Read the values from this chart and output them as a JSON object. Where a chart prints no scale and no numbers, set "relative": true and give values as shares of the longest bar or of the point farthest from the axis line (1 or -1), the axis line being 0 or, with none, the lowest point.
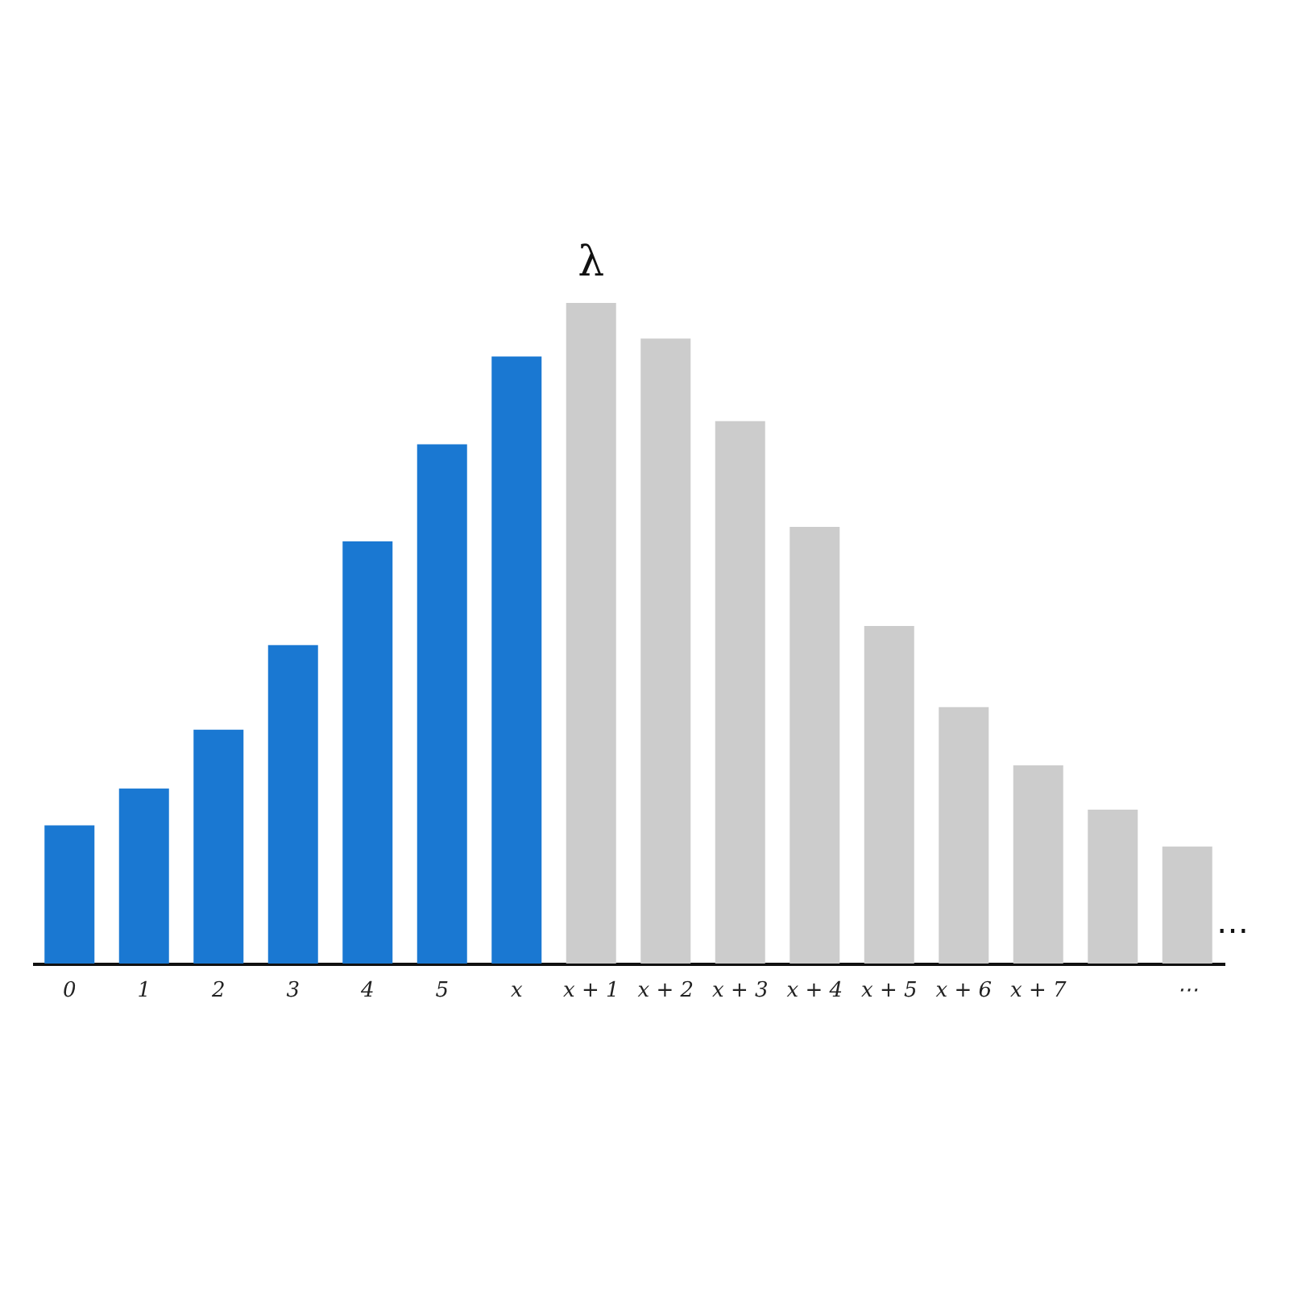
{
  "chart_data": {
    "type": "bar",
    "relative": true,
    "categories": [
      "0",
      "1",
      "2",
      "3",
      "4",
      "5",
      "x",
      "x + 1",
      "x + 2",
      "x + 3",
      "x + 4",
      "x + 5",
      "x + 6",
      "x + 7",
      null,
      "⋯"
    ],
    "values": [
      0.209,
      0.265,
      0.354,
      0.482,
      0.639,
      0.786,
      0.919,
      1,
      0.946,
      0.821,
      0.661,
      0.511,
      0.388,
      0.3,
      0.233,
      0.177
    ],
    "colors": [
      "#1a78d2",
      "#1a78d2",
      "#1a78d2",
      "#1a78d2",
      "#1a78d2",
      "#1a78d2",
      "#1a78d2",
      "#cccccc",
      "#cccccc",
      "#cccccc",
      "#cccccc",
      "#cccccc",
      "#cccccc",
      "#cccccc",
      "#cccccc",
      "#cccccc"
    ],
    "annotations": [
      {
        "text": "λ",
        "x": "x + 1",
        "y": 1
      },
      "…"
    ]
  }
}
